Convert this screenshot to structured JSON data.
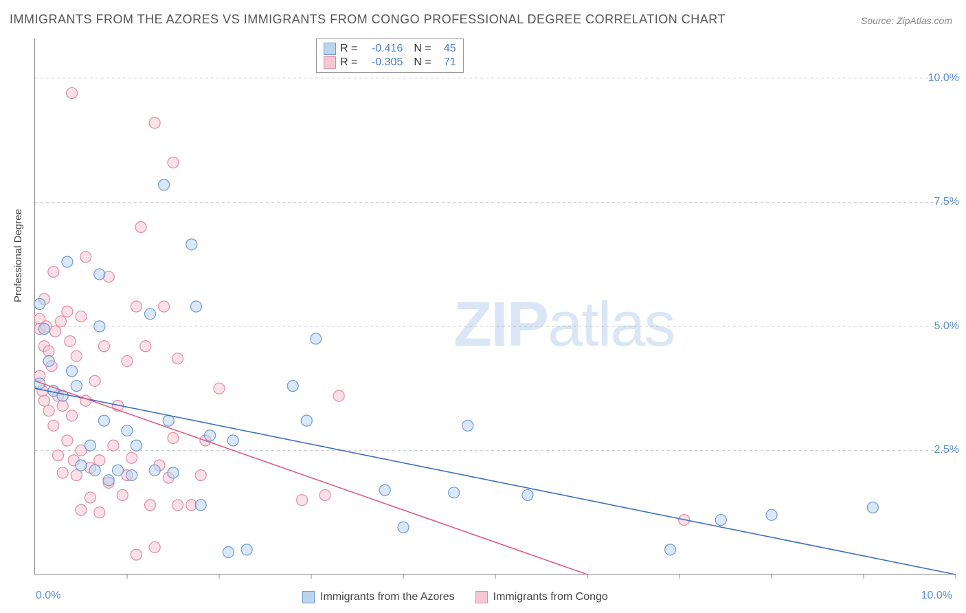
{
  "title": "IMMIGRANTS FROM THE AZORES VS IMMIGRANTS FROM CONGO PROFESSIONAL DEGREE CORRELATION CHART",
  "source": "Source: ZipAtlas.com",
  "watermark_a": "ZIP",
  "watermark_b": "atlas",
  "y_axis_label": "Professional Degree",
  "chart": {
    "type": "scatter",
    "xlim": [
      0,
      10
    ],
    "ylim": [
      0,
      10.8
    ],
    "x_ticks": [
      0,
      1,
      2,
      3,
      4,
      5,
      6,
      7,
      8,
      9,
      10
    ],
    "y_gridlines": [
      2.5,
      5.0,
      7.5,
      10.0
    ],
    "y_tick_labels": [
      "2.5%",
      "5.0%",
      "7.5%",
      "10.0%"
    ],
    "corner_min_label": "0.0%",
    "corner_max_label": "10.0%",
    "background_color": "#ffffff",
    "grid_color": "#cccccc",
    "axis_color": "#888888",
    "marker_radius": 8,
    "marker_stroke_width": 1.2,
    "line_width": 1.6,
    "series": [
      {
        "name": "Immigrants from the Azores",
        "fill": "#bcd4ee",
        "stroke": "#6b9bd1",
        "fill_opacity": 0.55,
        "R": "-0.416",
        "N": "45",
        "trend": {
          "x0": 0,
          "y0": 3.75,
          "x1": 10,
          "y1": 0.0,
          "color": "#3d6fbf"
        },
        "points": [
          [
            0.05,
            5.45
          ],
          [
            0.05,
            3.85
          ],
          [
            0.1,
            4.95
          ],
          [
            0.15,
            4.3
          ],
          [
            0.2,
            3.7
          ],
          [
            0.3,
            3.6
          ],
          [
            0.35,
            6.3
          ],
          [
            0.4,
            4.1
          ],
          [
            0.45,
            3.8
          ],
          [
            0.5,
            2.2
          ],
          [
            0.6,
            2.6
          ],
          [
            0.65,
            2.1
          ],
          [
            0.7,
            6.05
          ],
          [
            0.7,
            5.0
          ],
          [
            0.75,
            3.1
          ],
          [
            0.8,
            1.9
          ],
          [
            0.9,
            2.1
          ],
          [
            1.0,
            2.9
          ],
          [
            1.05,
            2.0
          ],
          [
            1.1,
            2.6
          ],
          [
            1.25,
            5.25
          ],
          [
            1.3,
            2.1
          ],
          [
            1.4,
            7.85
          ],
          [
            1.45,
            3.1
          ],
          [
            1.5,
            2.05
          ],
          [
            1.7,
            6.65
          ],
          [
            1.75,
            5.4
          ],
          [
            1.8,
            1.4
          ],
          [
            1.9,
            2.8
          ],
          [
            2.1,
            0.45
          ],
          [
            2.15,
            2.7
          ],
          [
            2.3,
            0.5
          ],
          [
            2.8,
            3.8
          ],
          [
            2.95,
            3.1
          ],
          [
            3.05,
            4.75
          ],
          [
            3.8,
            1.7
          ],
          [
            4.0,
            0.95
          ],
          [
            4.55,
            1.65
          ],
          [
            4.7,
            3.0
          ],
          [
            5.35,
            1.6
          ],
          [
            6.9,
            0.5
          ],
          [
            7.45,
            1.1
          ],
          [
            8.0,
            1.2
          ],
          [
            9.1,
            1.35
          ]
        ]
      },
      {
        "name": "Immigrants from Congo",
        "fill": "#f5c6d3",
        "stroke": "#e08ba3",
        "fill_opacity": 0.55,
        "R": "-0.305",
        "N": "71",
        "trend": {
          "x0": 0,
          "y0": 3.9,
          "x1": 6.0,
          "y1": 0.0,
          "color": "#e05a7f"
        },
        "points": [
          [
            0.05,
            5.15
          ],
          [
            0.05,
            4.95
          ],
          [
            0.05,
            4.0
          ],
          [
            0.08,
            3.7
          ],
          [
            0.1,
            5.55
          ],
          [
            0.1,
            4.6
          ],
          [
            0.1,
            3.5
          ],
          [
            0.12,
            5.0
          ],
          [
            0.15,
            4.5
          ],
          [
            0.15,
            3.3
          ],
          [
            0.18,
            4.2
          ],
          [
            0.2,
            6.1
          ],
          [
            0.2,
            3.0
          ],
          [
            0.22,
            4.9
          ],
          [
            0.25,
            3.6
          ],
          [
            0.25,
            2.4
          ],
          [
            0.28,
            5.1
          ],
          [
            0.3,
            3.4
          ],
          [
            0.3,
            2.05
          ],
          [
            0.35,
            5.3
          ],
          [
            0.35,
            2.7
          ],
          [
            0.38,
            4.7
          ],
          [
            0.4,
            9.7
          ],
          [
            0.4,
            3.2
          ],
          [
            0.42,
            2.3
          ],
          [
            0.45,
            4.4
          ],
          [
            0.45,
            2.0
          ],
          [
            0.5,
            5.2
          ],
          [
            0.5,
            2.5
          ],
          [
            0.5,
            1.3
          ],
          [
            0.55,
            6.4
          ],
          [
            0.55,
            3.5
          ],
          [
            0.6,
            2.15
          ],
          [
            0.6,
            1.55
          ],
          [
            0.65,
            3.9
          ],
          [
            0.7,
            2.3
          ],
          [
            0.7,
            1.25
          ],
          [
            0.75,
            4.6
          ],
          [
            0.8,
            6.0
          ],
          [
            0.8,
            1.85
          ],
          [
            0.85,
            2.6
          ],
          [
            0.9,
            3.4
          ],
          [
            0.95,
            1.6
          ],
          [
            1.0,
            4.3
          ],
          [
            1.0,
            2.0
          ],
          [
            1.05,
            2.35
          ],
          [
            1.1,
            5.4
          ],
          [
            1.1,
            0.4
          ],
          [
            1.15,
            7.0
          ],
          [
            1.2,
            4.6
          ],
          [
            1.25,
            1.4
          ],
          [
            1.3,
            9.1
          ],
          [
            1.3,
            0.55
          ],
          [
            1.35,
            2.2
          ],
          [
            1.4,
            5.4
          ],
          [
            1.45,
            1.95
          ],
          [
            1.5,
            8.3
          ],
          [
            1.5,
            2.75
          ],
          [
            1.55,
            4.35
          ],
          [
            1.55,
            1.4
          ],
          [
            1.7,
            1.4
          ],
          [
            1.8,
            2.0
          ],
          [
            1.85,
            2.7
          ],
          [
            2.0,
            3.75
          ],
          [
            2.9,
            1.5
          ],
          [
            3.15,
            1.6
          ],
          [
            3.3,
            3.6
          ],
          [
            7.05,
            1.1
          ]
        ]
      }
    ]
  },
  "legend_top": {
    "r_label": "R  =",
    "n_label": "N  ="
  },
  "legend_bottom_series_a": "Immigrants from the Azores",
  "legend_bottom_series_b": "Immigrants from Congo"
}
